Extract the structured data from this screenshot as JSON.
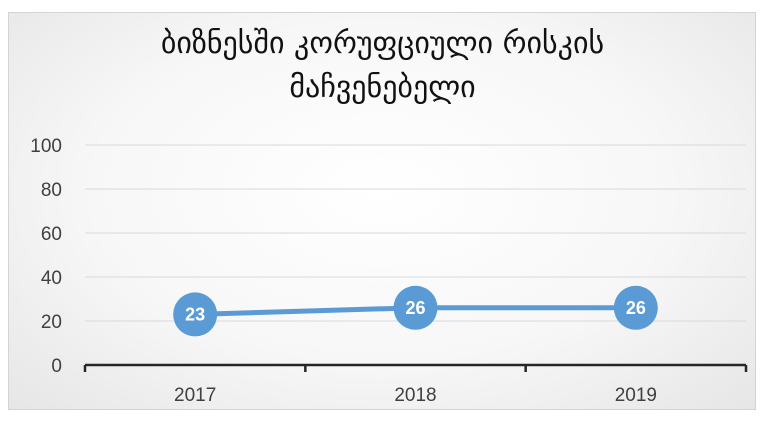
{
  "chart_data": {
    "type": "line",
    "title_line1": "ბიზნესში კორუფციული რისკის",
    "title_line2": "მაჩვენებელი",
    "categories": [
      "2017",
      "2018",
      "2019"
    ],
    "values": [
      23,
      26,
      26
    ],
    "data_labels": [
      "23",
      "26",
      "26"
    ],
    "ylim": [
      0,
      100
    ],
    "yticks": [
      0,
      20,
      40,
      60,
      80,
      100
    ],
    "ytick_labels": [
      "0",
      "20",
      "40",
      "60",
      "80",
      "100"
    ],
    "grid": true,
    "line_color": "#5b9bd5",
    "marker_color": "#5b9bd5",
    "label_color": "#ffffff",
    "gridline_color": "#d9d9d9",
    "axis_color": "#262626"
  }
}
